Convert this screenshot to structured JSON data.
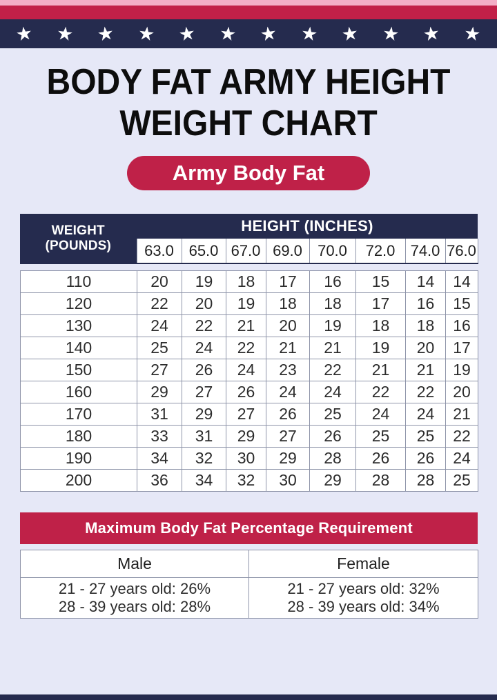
{
  "banner": {
    "stars_count": 12,
    "star_glyph": "★"
  },
  "title": {
    "line1": "BODY FAT ARMY HEIGHT",
    "line2": "WEIGHT CHART"
  },
  "badge": {
    "label": "Army Body Fat"
  },
  "colors": {
    "background": "#e6e8f7",
    "navy": "#252b4e",
    "crimson": "#bf2148",
    "pink_strip": "#f3aec6",
    "table_border": "#8d93a8"
  },
  "chart_data": {
    "type": "table",
    "title": "Body Fat Army Height Weight Chart",
    "row_group_label": "WEIGHT (POUNDS)",
    "col_group_label": "HEIGHT (INCHES)",
    "columns": [
      "63.0",
      "65.0",
      "67.0",
      "69.0",
      "70.0",
      "72.0",
      "74.0",
      "76.0"
    ],
    "rows": [
      {
        "weight": "110",
        "values": [
          20,
          19,
          18,
          17,
          16,
          15,
          14,
          14
        ]
      },
      {
        "weight": "120",
        "values": [
          22,
          20,
          19,
          18,
          18,
          17,
          16,
          15
        ]
      },
      {
        "weight": "130",
        "values": [
          24,
          22,
          21,
          20,
          19,
          18,
          18,
          16
        ]
      },
      {
        "weight": "140",
        "values": [
          25,
          24,
          22,
          21,
          21,
          19,
          20,
          17
        ]
      },
      {
        "weight": "150",
        "values": [
          27,
          26,
          24,
          23,
          22,
          21,
          21,
          19
        ]
      },
      {
        "weight": "160",
        "values": [
          29,
          27,
          26,
          24,
          24,
          22,
          22,
          20
        ]
      },
      {
        "weight": "170",
        "values": [
          31,
          29,
          27,
          26,
          25,
          24,
          24,
          21
        ]
      },
      {
        "weight": "180",
        "values": [
          33,
          31,
          29,
          27,
          26,
          25,
          25,
          22
        ]
      },
      {
        "weight": "190",
        "values": [
          34,
          32,
          30,
          29,
          28,
          26,
          26,
          24
        ]
      },
      {
        "weight": "200",
        "values": [
          36,
          34,
          32,
          30,
          29,
          28,
          28,
          25
        ]
      }
    ]
  },
  "requirements": {
    "title": "Maximum Body Fat Percentage Requirement",
    "columns": [
      {
        "header": "Male",
        "lines": [
          "21 - 27 years old: 26%",
          "28 - 39 years old: 28%"
        ]
      },
      {
        "header": "Female",
        "lines": [
          "21 - 27 years old: 32%",
          "28 - 39 years old: 34%"
        ]
      }
    ]
  }
}
